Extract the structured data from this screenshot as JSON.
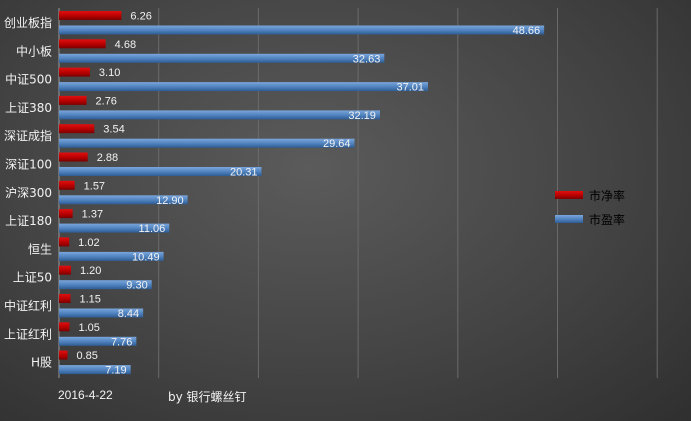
{
  "chart_data": {
    "type": "bar",
    "orientation": "horizontal",
    "categories": [
      "创业板指",
      "中小板",
      "中证500",
      "上证380",
      "深证成指",
      "深证100",
      "沪深300",
      "上证180",
      "恒生",
      "上证50",
      "中证红利",
      "上证红利",
      "H股"
    ],
    "series": [
      {
        "name": "市净率",
        "color": "#c00000",
        "values": [
          6.26,
          4.68,
          3.1,
          2.76,
          3.54,
          2.88,
          1.57,
          1.37,
          1.02,
          1.2,
          1.15,
          1.05,
          0.85
        ]
      },
      {
        "name": "市盈率",
        "color": "#4f81bd",
        "values": [
          48.66,
          32.63,
          37.01,
          32.19,
          29.64,
          20.31,
          12.9,
          11.06,
          10.49,
          9.3,
          8.44,
          7.76,
          7.19
        ]
      }
    ],
    "value_labels": [
      [
        "6.26",
        "4.68",
        "3.10",
        "2.76",
        "3.54",
        "2.88",
        "1.57",
        "1.37",
        "1.02",
        "1.20",
        "1.15",
        "1.05",
        "0.85"
      ],
      [
        "48.66",
        "32.63",
        "37.01",
        "32.19",
        "29.64",
        "20.31",
        "12.90",
        "11.06",
        "10.49",
        "9.30",
        "8.44",
        "7.76",
        "7.19"
      ]
    ],
    "xlim": [
      0,
      60
    ],
    "grid": true,
    "legend_position": "right"
  },
  "footer": {
    "date": "2016-4-22",
    "credit": "by 银行螺丝钉"
  }
}
